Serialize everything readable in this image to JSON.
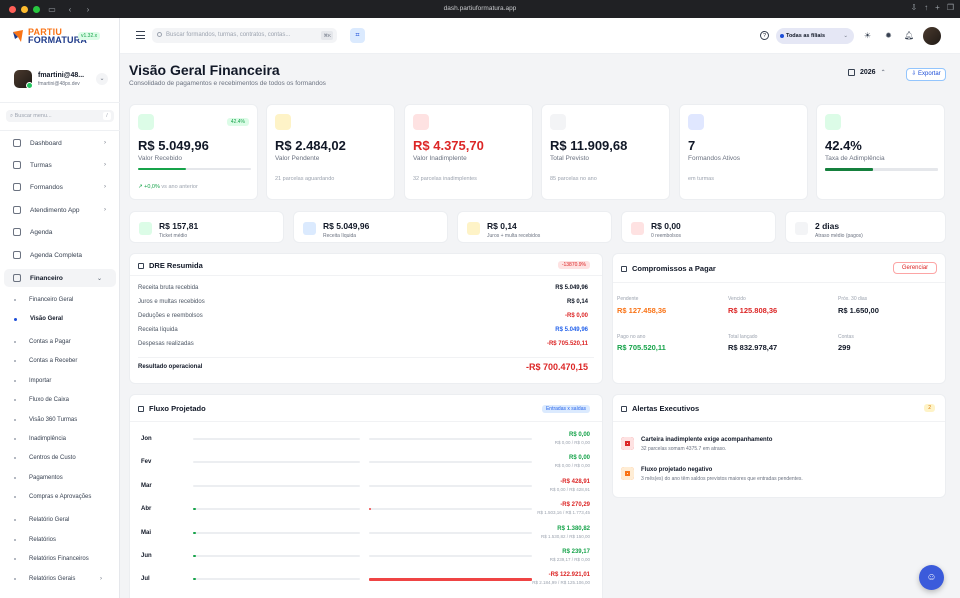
{
  "browser": {
    "url": "dash.partiuformatura.app"
  },
  "app": {
    "logo_line1": "PARTIU",
    "logo_line2": "FORMATURA",
    "version": "v1.32.x"
  },
  "user": {
    "name": "fmartini@48...",
    "email": "fmartini@48px.dev"
  },
  "sidebar": {
    "search_placeholder": "Buscar menu...",
    "search_shortcut": "/",
    "items": [
      {
        "label": "Dashboard",
        "chevron": "›"
      },
      {
        "label": "Turmas",
        "chevron": "›"
      },
      {
        "label": "Formandos",
        "chevron": "›"
      },
      {
        "label": "Atendimento App",
        "chevron": "›"
      },
      {
        "label": "Agenda",
        "chevron": ""
      },
      {
        "label": "Agenda Completa",
        "chevron": ""
      },
      {
        "label": "Financeiro",
        "chevron": "⌄"
      }
    ],
    "subitems": [
      "Financeiro Geral",
      "Visão Geral",
      "Contas a Pagar",
      "Contas a Receber",
      "Importar",
      "Fluxo de Caixa",
      "Visão 360 Turmas",
      "Inadimplência",
      "Centros de Custo",
      "Pagamentos",
      "Compras e Aprovações",
      "Relatório Geral",
      "Relatórios",
      "Relatórios Financeiros",
      "Relatórios Gerais"
    ],
    "reports_chevron": "›"
  },
  "topbar": {
    "search_placeholder": "Buscar formandos, turmas, contratos, contas...",
    "search_shortcut": "⌘K",
    "filial": "Todas as filiais",
    "filial_chevron": "⌄"
  },
  "page": {
    "title": "Visão Geral Financeira",
    "subtitle": "Consolidado de pagamentos e recebimentos de todos os formandos",
    "year": "2026",
    "year_stepper": "⌃",
    "export": "⇩ Exportar"
  },
  "kpis": [
    {
      "value": "R$ 5.049,96",
      "label": "Valor Recebido",
      "badge": "42.4%",
      "footer_num": "↗ +0,0%",
      "footer": "vs ano anterior",
      "progress_pct": 42.4,
      "color": "#16a34a"
    },
    {
      "value": "R$ 2.484,02",
      "label": "Valor Pendente",
      "footer_num": "21",
      "footer": "parcelas aguardando",
      "color": "#111827"
    },
    {
      "value": "R$ 4.375,70",
      "label": "Valor Inadimplente",
      "footer_num": "32",
      "footer": "parcelas inadimplentes",
      "color": "#dc2626"
    },
    {
      "value": "R$ 11.909,68",
      "label": "Total Previsto",
      "footer_num": "85",
      "footer": "parcelas no ano",
      "color": "#111827"
    },
    {
      "value": "7",
      "label": "Formandos Ativos",
      "footer_num": "em",
      "footer": "turmas",
      "color": "#111827"
    },
    {
      "value": "42.4%",
      "label": "Taxa de Adimplência",
      "progress_pct": 42.4,
      "color": "#111827"
    }
  ],
  "minis": [
    {
      "value": "R$ 157,81",
      "label": "Ticket médio"
    },
    {
      "value": "R$ 5.049,96",
      "label": "Receita líquida"
    },
    {
      "value": "R$ 0,14",
      "label": "Juros + multa recebidos"
    },
    {
      "value": "R$ 0,00",
      "label": "0 reembolsos"
    },
    {
      "value": "2 dias",
      "label": "Atraso médio (pagos)"
    }
  ],
  "dre": {
    "title": "DRE Resumida",
    "badge": "-13870.9%",
    "rows": [
      {
        "label": "Receita bruta recebida",
        "value": "R$ 5.049,96",
        "color": "#111827"
      },
      {
        "label": "Juros e multas recebidos",
        "value": "R$ 0,14",
        "color": "#111827"
      },
      {
        "label": "Deduções e reembolsos",
        "value": "-R$ 0,00",
        "color": "#dc2626"
      },
      {
        "label": "Receita líquida",
        "value": "R$ 5.049,96",
        "color": "#2563eb"
      },
      {
        "label": "Despesas realizadas",
        "value": "-R$ 705.520,11",
        "color": "#dc2626"
      }
    ],
    "result_label": "Resultado operacional",
    "result_value": "-R$ 700.470,15"
  },
  "compromissos": {
    "title": "Compromissos a Pagar",
    "button": "Gerenciar",
    "cells": [
      {
        "label": "Pendente",
        "value": "R$ 127.458,36",
        "color": "#f97316"
      },
      {
        "label": "Vencido",
        "value": "R$ 125.808,36",
        "color": "#dc2626"
      },
      {
        "label": "Próx. 30 dias",
        "value": "R$ 1.650,00",
        "color": "#111827"
      },
      {
        "label": "Pago no ano",
        "value": "R$ 705.520,11",
        "color": "#16a34a"
      },
      {
        "label": "Total lançado",
        "value": "R$ 832.978,47",
        "color": "#111827"
      },
      {
        "label": "Contas",
        "value": "299",
        "color": "#111827"
      }
    ]
  },
  "fluxo": {
    "title": "Fluxo Projetado",
    "badge": "Entradas x saídas",
    "rows": [
      {
        "month": "Jon",
        "value": "R$ 0,00",
        "sub": "R$ 0,00 / R$ 0,00",
        "in_pct": 0,
        "out_pct": 0,
        "color": "#16a34a"
      },
      {
        "month": "Fev",
        "value": "R$ 0,00",
        "sub": "R$ 0,00 / R$ 0,00",
        "in_pct": 0,
        "out_pct": 0,
        "color": "#16a34a"
      },
      {
        "month": "Mar",
        "value": "-R$ 428,91",
        "sub": "R$ 0,00 / R$ 428,91",
        "in_pct": 0,
        "out_pct": 0,
        "color": "#dc2626"
      },
      {
        "month": "Abr",
        "value": "-R$ 270,29",
        "sub": "R$ 1.503,16 / R$ 1.773,45",
        "in_pct": 1,
        "out_pct": 1,
        "color": "#dc2626"
      },
      {
        "month": "Mai",
        "value": "R$ 1.380,82",
        "sub": "R$ 1.530,82 / R$ 150,00",
        "in_pct": 1,
        "out_pct": 0,
        "color": "#16a34a"
      },
      {
        "month": "Jun",
        "value": "R$ 239,17",
        "sub": "R$ 239,17 / R$ 0,00",
        "in_pct": 1,
        "out_pct": 0,
        "color": "#16a34a"
      },
      {
        "month": "Jul",
        "value": "-R$ 122.921,01",
        "sub": "R$ 2.184,99 / R$ 125.106,00",
        "in_pct": 1,
        "out_pct": 100,
        "color": "#dc2626"
      }
    ]
  },
  "alertas": {
    "title": "Alertas Executivos",
    "count": "2",
    "items": [
      {
        "title": "Carteira inadimplente exige acompanhamento",
        "desc": "32 parcelas somam 4375.7 em atraso.",
        "color": "#fee2e2",
        "icon_color": "#dc2626"
      },
      {
        "title": "Fluxo projetado negativo",
        "desc": "3 mês(es) do ano têm saldos previstos maiores que entradas pendentes.",
        "color": "#ffedd5",
        "icon_color": "#f97316"
      }
    ]
  }
}
